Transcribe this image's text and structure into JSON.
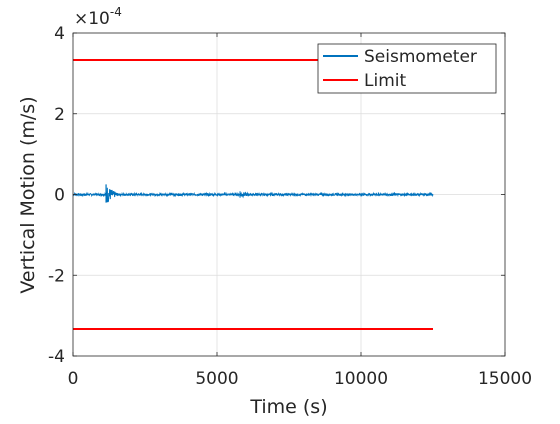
{
  "chart_data": {
    "type": "line",
    "title": "",
    "xlabel": "Time (s)",
    "ylabel": "Vertical Motion (m/s)",
    "y_exponent_label": "×10",
    "y_exponent_power": "-4",
    "xlim": [
      0,
      15000
    ],
    "ylim": [
      -4,
      4
    ],
    "xticks": [
      0,
      5000,
      10000,
      15000
    ],
    "xtick_labels": [
      "0",
      "5000",
      "10000",
      "15000"
    ],
    "yticks": [
      -4,
      -2,
      0,
      2,
      4
    ],
    "ytick_labels": [
      "-4",
      "-2",
      "0",
      "2",
      "4"
    ],
    "grid": true,
    "legend_position": "top-right",
    "series": [
      {
        "name": "Seismometer",
        "color": "#0072bd",
        "x_range": [
          0,
          12500
        ],
        "baseline": 0,
        "noise_amplitude": 0.025,
        "events": [
          {
            "x": 1150,
            "peak_high": 0.25,
            "peak_low": -0.2,
            "decay_end": 1800
          },
          {
            "x": 5800,
            "peak_high": 0.08,
            "peak_low": -0.08,
            "decay_end": 6600
          }
        ]
      },
      {
        "name": "Limit",
        "color": "#ff0000",
        "segments": [
          {
            "x": [
              0,
              12500
            ],
            "y": [
              3.33,
              3.33
            ]
          },
          {
            "x": [
              0,
              12500
            ],
            "y": [
              -3.33,
              -3.33
            ]
          }
        ]
      }
    ]
  }
}
